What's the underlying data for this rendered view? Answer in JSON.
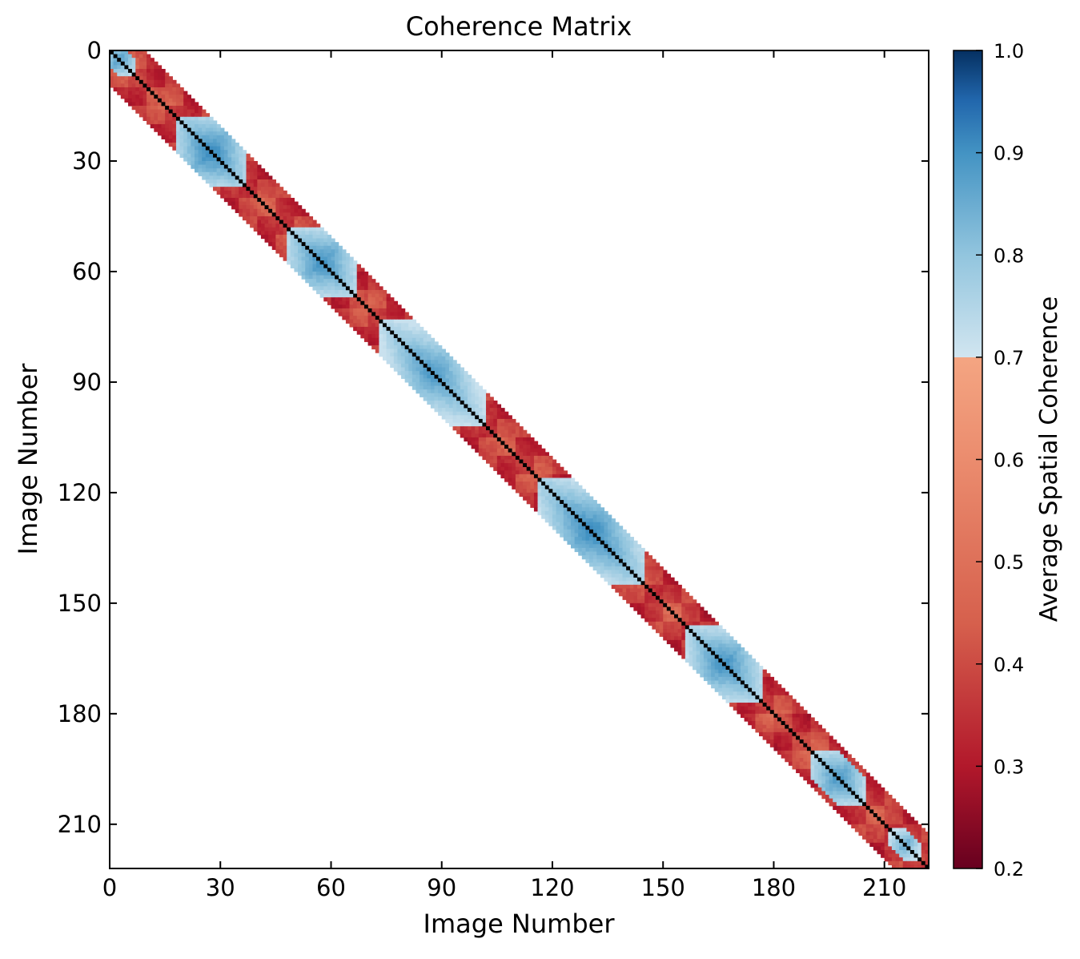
{
  "chart_data": {
    "type": "heatmap",
    "title": "Coherence Matrix",
    "xlabel": "Image Number",
    "ylabel": "Image Number",
    "n_images": 222,
    "x_ticks": [
      0,
      30,
      60,
      90,
      120,
      150,
      180,
      210
    ],
    "y_ticks": [
      0,
      30,
      60,
      90,
      120,
      150,
      180,
      210
    ],
    "xlim": [
      0,
      222
    ],
    "ylim": [
      222,
      0
    ],
    "band_half_width": 9,
    "diagonal_value": 1.0,
    "high_coherence_blocks": [
      {
        "center": 2,
        "radius": 4,
        "peak": 0.84
      },
      {
        "center": 27,
        "radius": 9,
        "peak": 0.87
      },
      {
        "center": 57,
        "radius": 9,
        "peak": 0.86
      },
      {
        "center": 87,
        "radius": 14,
        "peak": 0.85
      },
      {
        "center": 130,
        "radius": 14,
        "peak": 0.87
      },
      {
        "center": 166,
        "radius": 10,
        "peak": 0.86
      },
      {
        "center": 197,
        "radius": 7,
        "peak": 0.85
      },
      {
        "center": 215,
        "radius": 4,
        "peak": 0.82
      }
    ],
    "background_range": [
      0.38,
      0.62
    ],
    "colorbar": {
      "label": "Average Spatial Coherence",
      "min": 0.2,
      "max": 1.0,
      "ticks": [
        "0.2",
        "0.3",
        "0.4",
        "0.5",
        "0.6",
        "0.7",
        "0.8",
        "0.9",
        "1.0"
      ],
      "tick_values": [
        0.2,
        0.3,
        0.4,
        0.5,
        0.6,
        0.7,
        0.8,
        0.9,
        1.0
      ],
      "break_at": 0.7,
      "colormap": "RdBu",
      "colors_low": [
        "#67001f",
        "#b2182b",
        "#d6604d",
        "#f4a582"
      ],
      "colors_high": [
        "#d1e5f0",
        "#92c5de",
        "#4393c3",
        "#2166ac",
        "#053061"
      ]
    },
    "grid": false,
    "diagonal_color": "#000000"
  }
}
